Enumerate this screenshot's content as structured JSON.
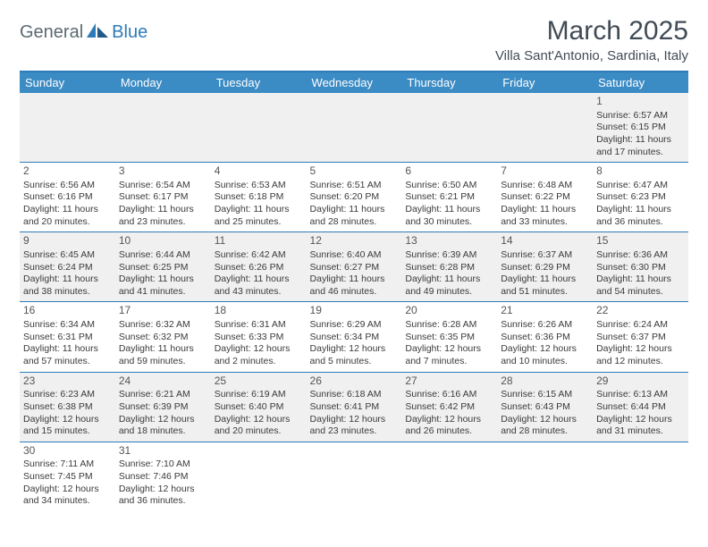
{
  "logo": {
    "part1": "General",
    "part2": "Blue"
  },
  "title": "March 2025",
  "location": "Villa Sant'Antonio, Sardinia, Italy",
  "colors": {
    "header_bg": "#3b8bc4",
    "border": "#2d7bb8",
    "row_alt": "#f0f0f0",
    "text": "#3a3a3a",
    "title_text": "#414b56"
  },
  "fonts": {
    "title_size": 30,
    "location_size": 15,
    "dayhead_size": 13,
    "cell_size": 10.5
  },
  "dayHeaders": [
    "Sunday",
    "Monday",
    "Tuesday",
    "Wednesday",
    "Thursday",
    "Friday",
    "Saturday"
  ],
  "weeks": [
    [
      null,
      null,
      null,
      null,
      null,
      null,
      {
        "d": "1",
        "sr": "6:57 AM",
        "ss": "6:15 PM",
        "dl1": "11 hours",
        "dl2": "and 17 minutes."
      }
    ],
    [
      {
        "d": "2",
        "sr": "6:56 AM",
        "ss": "6:16 PM",
        "dl1": "11 hours",
        "dl2": "and 20 minutes."
      },
      {
        "d": "3",
        "sr": "6:54 AM",
        "ss": "6:17 PM",
        "dl1": "11 hours",
        "dl2": "and 23 minutes."
      },
      {
        "d": "4",
        "sr": "6:53 AM",
        "ss": "6:18 PM",
        "dl1": "11 hours",
        "dl2": "and 25 minutes."
      },
      {
        "d": "5",
        "sr": "6:51 AM",
        "ss": "6:20 PM",
        "dl1": "11 hours",
        "dl2": "and 28 minutes."
      },
      {
        "d": "6",
        "sr": "6:50 AM",
        "ss": "6:21 PM",
        "dl1": "11 hours",
        "dl2": "and 30 minutes."
      },
      {
        "d": "7",
        "sr": "6:48 AM",
        "ss": "6:22 PM",
        "dl1": "11 hours",
        "dl2": "and 33 minutes."
      },
      {
        "d": "8",
        "sr": "6:47 AM",
        "ss": "6:23 PM",
        "dl1": "11 hours",
        "dl2": "and 36 minutes."
      }
    ],
    [
      {
        "d": "9",
        "sr": "6:45 AM",
        "ss": "6:24 PM",
        "dl1": "11 hours",
        "dl2": "and 38 minutes."
      },
      {
        "d": "10",
        "sr": "6:44 AM",
        "ss": "6:25 PM",
        "dl1": "11 hours",
        "dl2": "and 41 minutes."
      },
      {
        "d": "11",
        "sr": "6:42 AM",
        "ss": "6:26 PM",
        "dl1": "11 hours",
        "dl2": "and 43 minutes."
      },
      {
        "d": "12",
        "sr": "6:40 AM",
        "ss": "6:27 PM",
        "dl1": "11 hours",
        "dl2": "and 46 minutes."
      },
      {
        "d": "13",
        "sr": "6:39 AM",
        "ss": "6:28 PM",
        "dl1": "11 hours",
        "dl2": "and 49 minutes."
      },
      {
        "d": "14",
        "sr": "6:37 AM",
        "ss": "6:29 PM",
        "dl1": "11 hours",
        "dl2": "and 51 minutes."
      },
      {
        "d": "15",
        "sr": "6:36 AM",
        "ss": "6:30 PM",
        "dl1": "11 hours",
        "dl2": "and 54 minutes."
      }
    ],
    [
      {
        "d": "16",
        "sr": "6:34 AM",
        "ss": "6:31 PM",
        "dl1": "11 hours",
        "dl2": "and 57 minutes."
      },
      {
        "d": "17",
        "sr": "6:32 AM",
        "ss": "6:32 PM",
        "dl1": "11 hours",
        "dl2": "and 59 minutes."
      },
      {
        "d": "18",
        "sr": "6:31 AM",
        "ss": "6:33 PM",
        "dl1": "12 hours",
        "dl2": "and 2 minutes."
      },
      {
        "d": "19",
        "sr": "6:29 AM",
        "ss": "6:34 PM",
        "dl1": "12 hours",
        "dl2": "and 5 minutes."
      },
      {
        "d": "20",
        "sr": "6:28 AM",
        "ss": "6:35 PM",
        "dl1": "12 hours",
        "dl2": "and 7 minutes."
      },
      {
        "d": "21",
        "sr": "6:26 AM",
        "ss": "6:36 PM",
        "dl1": "12 hours",
        "dl2": "and 10 minutes."
      },
      {
        "d": "22",
        "sr": "6:24 AM",
        "ss": "6:37 PM",
        "dl1": "12 hours",
        "dl2": "and 12 minutes."
      }
    ],
    [
      {
        "d": "23",
        "sr": "6:23 AM",
        "ss": "6:38 PM",
        "dl1": "12 hours",
        "dl2": "and 15 minutes."
      },
      {
        "d": "24",
        "sr": "6:21 AM",
        "ss": "6:39 PM",
        "dl1": "12 hours",
        "dl2": "and 18 minutes."
      },
      {
        "d": "25",
        "sr": "6:19 AM",
        "ss": "6:40 PM",
        "dl1": "12 hours",
        "dl2": "and 20 minutes."
      },
      {
        "d": "26",
        "sr": "6:18 AM",
        "ss": "6:41 PM",
        "dl1": "12 hours",
        "dl2": "and 23 minutes."
      },
      {
        "d": "27",
        "sr": "6:16 AM",
        "ss": "6:42 PM",
        "dl1": "12 hours",
        "dl2": "and 26 minutes."
      },
      {
        "d": "28",
        "sr": "6:15 AM",
        "ss": "6:43 PM",
        "dl1": "12 hours",
        "dl2": "and 28 minutes."
      },
      {
        "d": "29",
        "sr": "6:13 AM",
        "ss": "6:44 PM",
        "dl1": "12 hours",
        "dl2": "and 31 minutes."
      }
    ],
    [
      {
        "d": "30",
        "sr": "7:11 AM",
        "ss": "7:45 PM",
        "dl1": "12 hours",
        "dl2": "and 34 minutes."
      },
      {
        "d": "31",
        "sr": "7:10 AM",
        "ss": "7:46 PM",
        "dl1": "12 hours",
        "dl2": "and 36 minutes."
      },
      null,
      null,
      null,
      null,
      null
    ]
  ],
  "labels": {
    "sunrise": "Sunrise:",
    "sunset": "Sunset:",
    "daylight": "Daylight:"
  }
}
